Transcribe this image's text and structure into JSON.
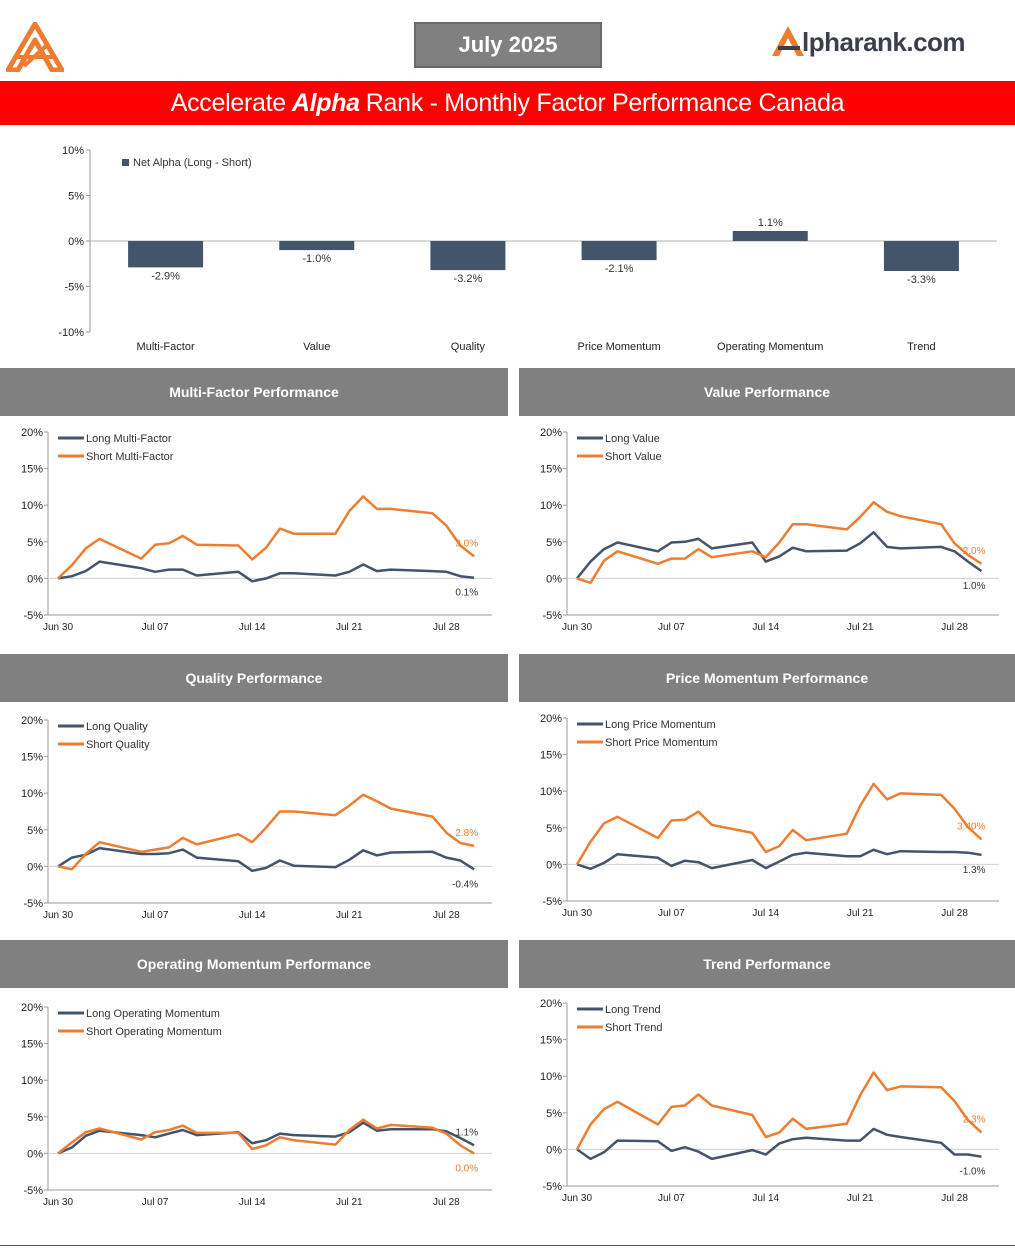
{
  "header": {
    "month": "July 2025",
    "brand": "lpharank.com",
    "banner_pre": "Accelerate",
    "banner_bold": "Alpha",
    "banner_post": "Rank - Monthly Factor Performance Canada"
  },
  "colors": {
    "long": "#44546a",
    "short": "#ed7d31",
    "bar": "#44546a",
    "banner": "#ff0000",
    "section": "#808080"
  },
  "chart_data": [
    {
      "id": "net",
      "type": "bar",
      "title": "",
      "legend": "Net Alpha (Long - Short)",
      "legend_position": "top-left",
      "categories": [
        "Multi-Factor",
        "Value",
        "Quality",
        "Price Momentum",
        "Operating Momentum",
        "Trend"
      ],
      "values": [
        -2.9,
        -1.0,
        -3.2,
        -2.1,
        1.1,
        -3.3
      ],
      "value_labels": [
        "-2.9%",
        "-1.0%",
        "-3.2%",
        "-2.1%",
        "1.1%",
        "-3.3%"
      ],
      "yticks": [
        "10%",
        "5%",
        "0%",
        "-5%",
        "-10%"
      ],
      "ylim": [
        -10,
        10
      ],
      "grid": false
    },
    {
      "id": "multi",
      "type": "line",
      "title": "Multi-Factor Performance",
      "x": [
        0,
        1,
        2,
        3,
        6,
        7,
        8,
        9,
        10,
        13,
        14,
        15,
        16,
        17,
        20,
        21,
        22,
        23,
        24,
        27,
        28,
        29,
        30
      ],
      "xticks": [
        {
          "x": 0,
          "label": "Jun 30"
        },
        {
          "x": 7,
          "label": "Jul 07"
        },
        {
          "x": 14,
          "label": "Jul 14"
        },
        {
          "x": 21,
          "label": "Jul 21"
        },
        {
          "x": 28,
          "label": "Jul 28"
        }
      ],
      "yticks": [
        "20%",
        "15%",
        "10%",
        "5%",
        "0%",
        "-5%"
      ],
      "ylim": [
        -5,
        20
      ],
      "series": [
        {
          "name": "Long Multi-Factor",
          "values": [
            0,
            0.3,
            1.0,
            2.3,
            1.4,
            0.9,
            1.2,
            1.2,
            0.4,
            0.9,
            -0.4,
            0.0,
            0.7,
            0.7,
            0.4,
            0.9,
            1.9,
            1.0,
            1.2,
            1.0,
            0.9,
            0.3,
            0.1
          ],
          "end_label": "0.1%"
        },
        {
          "name": "Short Multi-Factor",
          "values": [
            0,
            1.8,
            4.1,
            5.4,
            2.7,
            4.6,
            4.8,
            5.8,
            4.6,
            4.5,
            2.6,
            4.2,
            6.8,
            6.1,
            6.1,
            9.2,
            11.2,
            9.5,
            9.5,
            8.9,
            7.2,
            4.5,
            3.0
          ],
          "end_label": "3.0%"
        }
      ]
    },
    {
      "id": "value",
      "type": "line",
      "title": "Value Performance",
      "x": [
        0,
        1,
        2,
        3,
        6,
        7,
        8,
        9,
        10,
        13,
        14,
        15,
        16,
        17,
        20,
        21,
        22,
        23,
        24,
        27,
        28,
        29,
        30
      ],
      "xticks": [
        {
          "x": 0,
          "label": "Jun 30"
        },
        {
          "x": 7,
          "label": "Jul 07"
        },
        {
          "x": 14,
          "label": "Jul 14"
        },
        {
          "x": 21,
          "label": "Jul 21"
        },
        {
          "x": 28,
          "label": "Jul 28"
        }
      ],
      "yticks": [
        "20%",
        "15%",
        "10%",
        "5%",
        "0%",
        "-5%"
      ],
      "ylim": [
        -5,
        20
      ],
      "series": [
        {
          "name": "Long Value",
          "values": [
            0,
            2.3,
            4.0,
            4.9,
            3.7,
            4.9,
            5.0,
            5.4,
            4.1,
            4.9,
            2.3,
            3.0,
            4.2,
            3.7,
            3.8,
            4.8,
            6.3,
            4.3,
            4.1,
            4.3,
            3.7,
            2.3,
            1.0
          ],
          "end_label": "1.0%"
        },
        {
          "name": "Short Value",
          "values": [
            0,
            -0.6,
            2.4,
            3.7,
            2.0,
            2.7,
            2.7,
            4.0,
            2.9,
            3.7,
            2.9,
            4.9,
            7.4,
            7.4,
            6.7,
            8.4,
            10.4,
            9.1,
            8.5,
            7.4,
            4.8,
            3.2,
            2.0
          ],
          "end_label": "2.0%"
        }
      ]
    },
    {
      "id": "quality",
      "type": "line",
      "title": "Quality Performance",
      "x": [
        0,
        1,
        2,
        3,
        6,
        7,
        8,
        9,
        10,
        13,
        14,
        15,
        16,
        17,
        20,
        21,
        22,
        23,
        24,
        27,
        28,
        29,
        30
      ],
      "xticks": [
        {
          "x": 0,
          "label": "Jun 30"
        },
        {
          "x": 7,
          "label": "Jul 07"
        },
        {
          "x": 14,
          "label": "Jul 14"
        },
        {
          "x": 21,
          "label": "Jul 21"
        },
        {
          "x": 28,
          "label": "Jul 28"
        }
      ],
      "yticks": [
        "20%",
        "15%",
        "10%",
        "5%",
        "0%",
        "-5%"
      ],
      "ylim": [
        -5,
        20
      ],
      "series": [
        {
          "name": "Long Quality",
          "values": [
            0,
            1.2,
            1.6,
            2.5,
            1.7,
            1.7,
            1.8,
            2.3,
            1.2,
            0.7,
            -0.6,
            -0.2,
            0.8,
            0.1,
            -0.1,
            0.9,
            2.2,
            1.5,
            1.9,
            2.0,
            1.2,
            0.8,
            -0.4
          ],
          "end_label": "-0.4%"
        },
        {
          "name": "Short Quality",
          "values": [
            0,
            -0.4,
            1.7,
            3.3,
            2.0,
            2.3,
            2.6,
            3.9,
            3.0,
            4.4,
            3.3,
            5.3,
            7.5,
            7.5,
            7.0,
            8.3,
            9.8,
            8.9,
            7.9,
            6.8,
            4.6,
            3.2,
            2.8
          ],
          "end_label": "2.8%"
        }
      ]
    },
    {
      "id": "pmom",
      "type": "line",
      "title": "Price Momentum Performance",
      "x": [
        0,
        1,
        2,
        3,
        6,
        7,
        8,
        9,
        10,
        13,
        14,
        15,
        16,
        17,
        20,
        21,
        22,
        23,
        24,
        27,
        28,
        29,
        30
      ],
      "xticks": [
        {
          "x": 0,
          "label": "Jun 30"
        },
        {
          "x": 7,
          "label": "Jul 07"
        },
        {
          "x": 14,
          "label": "Jul 14"
        },
        {
          "x": 21,
          "label": "Jul 21"
        },
        {
          "x": 28,
          "label": "Jul 28"
        }
      ],
      "yticks": [
        "20%",
        "15%",
        "10%",
        "5%",
        "0%",
        "-5%"
      ],
      "ylim": [
        -5,
        20
      ],
      "series": [
        {
          "name": "Long Price Momentum",
          "values": [
            0,
            -0.6,
            0.2,
            1.4,
            0.9,
            -0.2,
            0.5,
            0.3,
            -0.5,
            0.6,
            -0.5,
            0.4,
            1.3,
            1.6,
            1.1,
            1.1,
            2.0,
            1.4,
            1.8,
            1.7,
            1.7,
            1.6,
            1.3
          ],
          "end_label": "1.3%"
        },
        {
          "name": "Short Price Momentum",
          "values": [
            0,
            3.1,
            5.6,
            6.5,
            3.6,
            6.0,
            6.1,
            7.2,
            5.4,
            4.3,
            1.7,
            2.5,
            4.7,
            3.3,
            4.2,
            8.0,
            11.0,
            8.9,
            9.7,
            9.5,
            7.6,
            5.1,
            3.4
          ],
          "end_label": "3.40%"
        }
      ]
    },
    {
      "id": "omom",
      "type": "line",
      "title": "Operating Momentum Performance",
      "x": [
        0,
        1,
        2,
        3,
        6,
        7,
        8,
        9,
        10,
        13,
        14,
        15,
        16,
        17,
        20,
        21,
        22,
        23,
        24,
        27,
        28,
        29,
        30
      ],
      "xticks": [
        {
          "x": 0,
          "label": "Jun 30"
        },
        {
          "x": 7,
          "label": "Jul 07"
        },
        {
          "x": 14,
          "label": "Jul 14"
        },
        {
          "x": 21,
          "label": "Jul 21"
        },
        {
          "x": 28,
          "label": "Jul 28"
        }
      ],
      "yticks": [
        "20%",
        "15%",
        "10%",
        "5%",
        "0%",
        "-5%"
      ],
      "ylim": [
        -5,
        20
      ],
      "series": [
        {
          "name": "Long Operating Momentum",
          "values": [
            0,
            0.8,
            2.4,
            3.1,
            2.5,
            2.2,
            2.7,
            3.2,
            2.5,
            2.9,
            1.4,
            1.8,
            2.7,
            2.5,
            2.3,
            2.9,
            4.2,
            3.1,
            3.3,
            3.3,
            3.0,
            2.1,
            1.1
          ],
          "end_label": "1.1%"
        },
        {
          "name": "Short Operating Momentum",
          "values": [
            0,
            1.5,
            2.9,
            3.4,
            1.9,
            2.9,
            3.2,
            3.8,
            2.8,
            2.8,
            0.6,
            1.1,
            2.2,
            1.8,
            1.2,
            3.2,
            4.6,
            3.4,
            3.9,
            3.5,
            2.7,
            1.1,
            0.0
          ],
          "end_label": "0.0%"
        }
      ]
    },
    {
      "id": "trend",
      "type": "line",
      "title": "Trend Performance",
      "x": [
        0,
        1,
        2,
        3,
        6,
        7,
        8,
        9,
        10,
        13,
        14,
        15,
        16,
        17,
        20,
        21,
        22,
        23,
        24,
        27,
        28,
        29,
        30
      ],
      "xticks": [
        {
          "x": 0,
          "label": "Jun 30"
        },
        {
          "x": 7,
          "label": "Jul 07"
        },
        {
          "x": 14,
          "label": "Jul 14"
        },
        {
          "x": 21,
          "label": "Jul 21"
        },
        {
          "x": 28,
          "label": "Jul 28"
        }
      ],
      "yticks": [
        "20%",
        "15%",
        "10%",
        "5%",
        "0%",
        "-5%"
      ],
      "ylim": [
        -5,
        20
      ],
      "series": [
        {
          "name": "Long Trend",
          "values": [
            0,
            -1.3,
            -0.4,
            1.2,
            1.1,
            -0.2,
            0.3,
            -0.3,
            -1.3,
            -0.1,
            -0.7,
            0.8,
            1.4,
            1.6,
            1.2,
            1.2,
            2.8,
            2.0,
            1.7,
            0.9,
            -0.7,
            -0.7,
            -1.0
          ],
          "end_label": "-1.0%"
        },
        {
          "name": "Short Trend",
          "values": [
            0,
            3.4,
            5.5,
            6.5,
            3.4,
            5.8,
            6.0,
            7.5,
            6.0,
            4.7,
            1.7,
            2.3,
            4.2,
            2.8,
            3.5,
            7.4,
            10.5,
            8.1,
            8.6,
            8.5,
            6.6,
            4.0,
            2.3
          ],
          "end_label": "2.3%"
        }
      ]
    }
  ]
}
